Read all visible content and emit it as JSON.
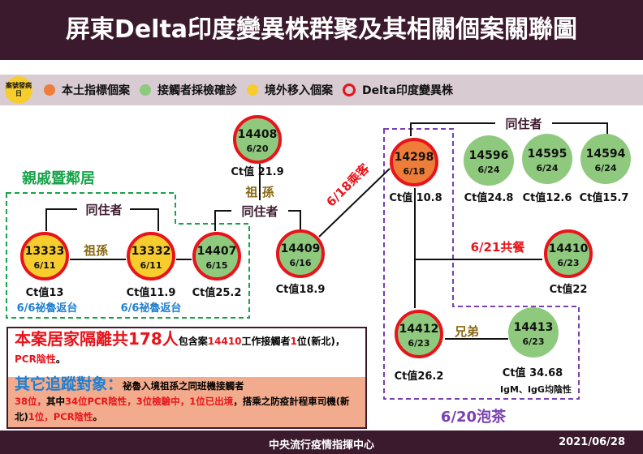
{
  "header": {
    "title": "屏東Delta印度變異株群聚及其相關個案關聯圖"
  },
  "legend": {
    "badge": "案號發病日",
    "items": [
      {
        "label": "本土指標個案",
        "color": "#ee7d3a"
      },
      {
        "label": "接觸者採檢確診",
        "color": "#8fc97e"
      },
      {
        "label": "境外移入個案",
        "color": "#f7cd2e"
      },
      {
        "label": "Delta印度變異株",
        "color": "#e8141b"
      }
    ]
  },
  "cases": {
    "c14408": {
      "id": "14408",
      "date": "6/20",
      "ct": "Ct值  21.9"
    },
    "c13333": {
      "id": "13333",
      "date": "6/11",
      "ct": "Ct值13",
      "note": "6/6祕魯返台"
    },
    "c13332": {
      "id": "13332",
      "date": "6/11",
      "ct": "Ct值11.9",
      "note": "6/6祕魯返台"
    },
    "c14407": {
      "id": "14407",
      "date": "6/15",
      "ct": "Ct值25.2"
    },
    "c14409": {
      "id": "14409",
      "date": "6/16",
      "ct": "Ct值18.9"
    },
    "c14298": {
      "id": "14298",
      "date": "6/18",
      "ct": "Ct值 10.8"
    },
    "c14596": {
      "id": "14596",
      "date": "6/24",
      "ct": "Ct值24.8"
    },
    "c14595": {
      "id": "14595",
      "date": "6/24",
      "ct": "Ct值12.6"
    },
    "c14594": {
      "id": "14594",
      "date": "6/24",
      "ct": "Ct值15.7"
    },
    "c14410": {
      "id": "14410",
      "date": "6/23",
      "ct": "Ct值22"
    },
    "c14412": {
      "id": "14412",
      "date": "6/23",
      "ct": "Ct值26.2"
    },
    "c14413": {
      "id": "14413",
      "date": "6/23",
      "ct": "Ct值 34.68",
      "ab": "IgM、IgG均陰性"
    }
  },
  "relations": {
    "cohabit": "同住者",
    "grand": "祖孫",
    "grand_split": "祖  孫",
    "brothers": "兄弟",
    "ride": "6/18乘客",
    "meal": "6/21共餐",
    "tea": "6/20泡茶",
    "relatives": "親戚暨鄰居"
  },
  "summary": {
    "l1_big": "本案居家隔離共178人",
    "l1_a": "包含案",
    "l1_case": "14410",
    "l1_b": "工作接觸者",
    "l1_c": "1",
    "l1_d": "位(新北)，",
    "l1_e": "PCR陰性",
    "l1_f": "。",
    "l2_big": "其它追蹤對象：",
    "l2_a": "祕魯入境祖孫之同班機接觸者",
    "l2_b": "38位，",
    "l2_c": "其中",
    "l2_d": "34位PCR陰性，3位檢驗中，",
    "l2_e": "1位已出境",
    "l2_f": "，搭乘之防疫計程車司機(新北)",
    "l2_g": "1位，PCR陰性",
    "l2_h": "。"
  },
  "footer": {
    "org": "中央流行疫情指揮中心",
    "date": "2021/06/28"
  }
}
